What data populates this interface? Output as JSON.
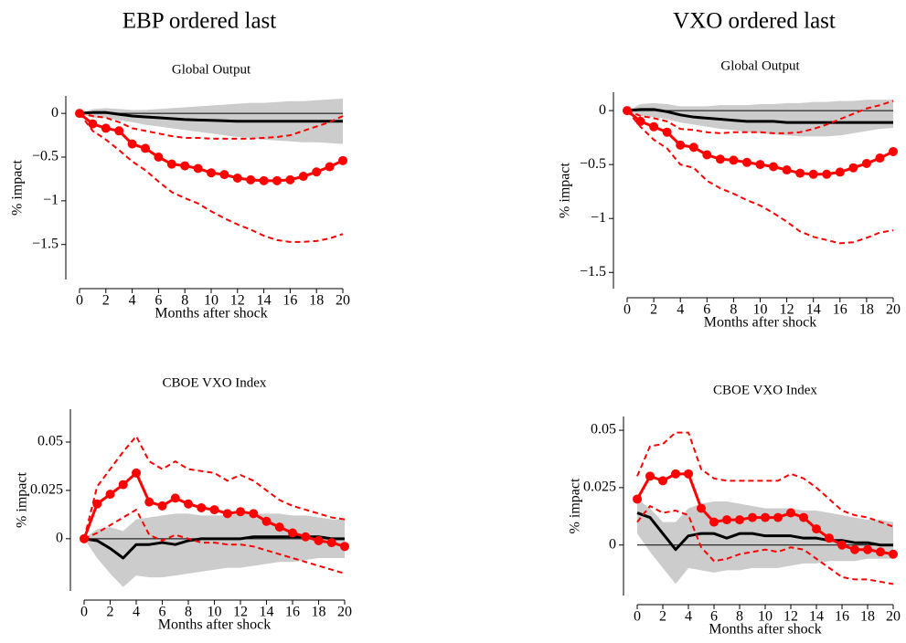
{
  "column_titles": [
    "EBP ordered last",
    "VXO ordered last"
  ],
  "chart_data": [
    {
      "type": "line",
      "title": "Global Output",
      "ylabel": "% impact",
      "xlabel": "Months after shock",
      "x": [
        0,
        1,
        2,
        3,
        4,
        5,
        6,
        7,
        8,
        9,
        10,
        11,
        12,
        13,
        14,
        15,
        16,
        17,
        18,
        19,
        20
      ],
      "xlim": [
        0,
        20
      ],
      "xticks": [
        0,
        2,
        4,
        6,
        8,
        10,
        12,
        14,
        16,
        18,
        20
      ],
      "ylim": [
        -1.9,
        0.2
      ],
      "yticks": [
        {
          "value": -1.5,
          "label": "−1.5"
        },
        {
          "value": -1,
          "label": "−1"
        },
        {
          "value": -0.5,
          "label": "−0.5"
        },
        0
      ],
      "hline": 0,
      "bands": [
        {
          "color": "#cccccc",
          "upper": [
            0,
            0.05,
            0.06,
            0.05,
            0.04,
            0.04,
            0.05,
            0.06,
            0.07,
            0.08,
            0.09,
            0.1,
            0.11,
            0.12,
            0.12,
            0.13,
            0.14,
            0.14,
            0.15,
            0.16,
            0.17
          ],
          "lower": [
            0,
            -0.05,
            -0.05,
            -0.08,
            -0.1,
            -0.13,
            -0.15,
            -0.17,
            -0.19,
            -0.21,
            -0.23,
            -0.25,
            -0.27,
            -0.28,
            -0.3,
            -0.31,
            -0.32,
            -0.33,
            -0.33,
            -0.34,
            -0.35
          ]
        }
      ],
      "series": [
        {
          "color": "#000000",
          "style": "solid",
          "width": 3,
          "values": [
            0,
            0.01,
            0.01,
            -0.01,
            -0.03,
            -0.04,
            -0.05,
            -0.06,
            -0.07,
            -0.075,
            -0.08,
            -0.085,
            -0.09,
            -0.09,
            -0.09,
            -0.09,
            -0.09,
            -0.09,
            -0.09,
            -0.09,
            -0.09
          ]
        },
        {
          "color": "#ff0000",
          "style": "dashed",
          "width": 2,
          "values": [
            0,
            -0.03,
            -0.05,
            -0.1,
            -0.17,
            -0.2,
            -0.23,
            -0.26,
            -0.28,
            -0.28,
            -0.29,
            -0.29,
            -0.29,
            -0.29,
            -0.28,
            -0.27,
            -0.25,
            -0.2,
            -0.15,
            -0.1,
            -0.03
          ]
        },
        {
          "color": "#ff0000",
          "style": "dashed",
          "width": 2,
          "values": [
            0,
            -0.2,
            -0.3,
            -0.42,
            -0.55,
            -0.65,
            -0.78,
            -0.9,
            -0.97,
            -1.03,
            -1.12,
            -1.2,
            -1.27,
            -1.33,
            -1.4,
            -1.45,
            -1.47,
            -1.47,
            -1.46,
            -1.43,
            -1.38
          ]
        },
        {
          "color": "#ff0000",
          "style": "solid",
          "width": 3,
          "markers": true,
          "values": [
            0,
            -0.12,
            -0.17,
            -0.2,
            -0.35,
            -0.4,
            -0.5,
            -0.58,
            -0.6,
            -0.63,
            -0.68,
            -0.7,
            -0.74,
            -0.76,
            -0.77,
            -0.77,
            -0.76,
            -0.72,
            -0.67,
            -0.61,
            -0.54
          ]
        }
      ]
    },
    {
      "type": "line",
      "title": "Global Output",
      "ylabel": "% impact",
      "xlabel": "Months after shock",
      "x": [
        0,
        1,
        2,
        3,
        4,
        5,
        6,
        7,
        8,
        9,
        10,
        11,
        12,
        13,
        14,
        15,
        16,
        17,
        18,
        19,
        20
      ],
      "xlim": [
        0,
        20
      ],
      "xticks": [
        0,
        2,
        4,
        6,
        8,
        10,
        12,
        14,
        16,
        18,
        20
      ],
      "ylim": [
        -1.65,
        0.17
      ],
      "yticks": [
        {
          "value": -1.5,
          "label": "−1.5"
        },
        {
          "value": -1,
          "label": "−1"
        },
        {
          "value": -0.5,
          "label": "−0.5"
        },
        0
      ],
      "hline": 0,
      "bands": [
        {
          "color": "#cccccc",
          "upper": [
            0,
            0.06,
            0.07,
            0.06,
            0.04,
            0.04,
            0.04,
            0.05,
            0.05,
            0.05,
            0.06,
            0.06,
            0.07,
            0.07,
            0.08,
            0.08,
            0.09,
            0.09,
            0.1,
            0.1,
            0.1
          ],
          "lower": [
            0,
            -0.05,
            -0.06,
            -0.08,
            -0.11,
            -0.13,
            -0.15,
            -0.17,
            -0.18,
            -0.2,
            -0.21,
            -0.22,
            -0.23,
            -0.24,
            -0.24,
            -0.24,
            -0.23,
            -0.21,
            -0.19,
            -0.17,
            -0.16
          ]
        }
      ],
      "series": [
        {
          "color": "#000000",
          "style": "solid",
          "width": 3,
          "values": [
            0,
            0.01,
            0.01,
            -0.01,
            -0.04,
            -0.06,
            -0.07,
            -0.08,
            -0.09,
            -0.1,
            -0.1,
            -0.1,
            -0.11,
            -0.11,
            -0.11,
            -0.11,
            -0.11,
            -0.11,
            -0.11,
            -0.11,
            -0.11
          ]
        },
        {
          "color": "#ff0000",
          "style": "dashed",
          "width": 2,
          "values": [
            0,
            -0.05,
            -0.07,
            -0.1,
            -0.17,
            -0.18,
            -0.2,
            -0.21,
            -0.2,
            -0.2,
            -0.2,
            -0.21,
            -0.21,
            -0.2,
            -0.17,
            -0.13,
            -0.08,
            -0.03,
            0.02,
            0.05,
            0.09
          ]
        },
        {
          "color": "#ff0000",
          "style": "dashed",
          "width": 2,
          "values": [
            0,
            -0.15,
            -0.27,
            -0.35,
            -0.5,
            -0.53,
            -0.65,
            -0.72,
            -0.77,
            -0.83,
            -0.88,
            -0.95,
            -1.03,
            -1.12,
            -1.17,
            -1.2,
            -1.23,
            -1.22,
            -1.18,
            -1.13,
            -1.11
          ]
        },
        {
          "color": "#ff0000",
          "style": "solid",
          "width": 3,
          "markers": true,
          "values": [
            0,
            -0.1,
            -0.15,
            -0.2,
            -0.32,
            -0.34,
            -0.41,
            -0.45,
            -0.46,
            -0.48,
            -0.5,
            -0.52,
            -0.55,
            -0.58,
            -0.59,
            -0.59,
            -0.57,
            -0.53,
            -0.49,
            -0.44,
            -0.38
          ]
        }
      ]
    },
    {
      "type": "line",
      "title": "CBOE VXO Index",
      "ylabel": "% impact",
      "xlabel": "Months after shock",
      "x": [
        0,
        1,
        2,
        3,
        4,
        5,
        6,
        7,
        8,
        9,
        10,
        11,
        12,
        13,
        14,
        15,
        16,
        17,
        18,
        19,
        20
      ],
      "xlim": [
        0,
        20
      ],
      "xticks": [
        0,
        2,
        4,
        6,
        8,
        10,
        12,
        14,
        16,
        18,
        20
      ],
      "ylim": [
        -0.027,
        0.067
      ],
      "yticks": [
        0,
        0.025,
        0.05
      ],
      "hline": 0,
      "bands": [
        {
          "color": "#cccccc",
          "upper": [
            0,
            0.005,
            0.006,
            0.004,
            0.01,
            0.011,
            0.012,
            0.013,
            0.013,
            0.012,
            0.012,
            0.012,
            0.013,
            0.013,
            0.013,
            0.013,
            0.012,
            0.012,
            0.011,
            0.01,
            0.01
          ],
          "lower": [
            0,
            -0.01,
            -0.018,
            -0.025,
            -0.019,
            -0.02,
            -0.02,
            -0.019,
            -0.018,
            -0.017,
            -0.016,
            -0.015,
            -0.015,
            -0.014,
            -0.013,
            -0.012,
            -0.012,
            -0.011,
            -0.01,
            -0.01,
            -0.01
          ]
        }
      ],
      "series": [
        {
          "color": "#000000",
          "style": "solid",
          "width": 3,
          "values": [
            0,
            -0.001,
            -0.005,
            -0.01,
            -0.003,
            -0.003,
            -0.002,
            -0.003,
            -0.001,
            0,
            0,
            0,
            0,
            0.001,
            0.001,
            0.001,
            0.001,
            0.001,
            0.001,
            0,
            0
          ]
        },
        {
          "color": "#ff0000",
          "style": "dashed",
          "width": 2,
          "values": [
            0,
            0.027,
            0.036,
            0.045,
            0.053,
            0.04,
            0.036,
            0.04,
            0.036,
            0.035,
            0.034,
            0.03,
            0.033,
            0.03,
            0.025,
            0.02,
            0.017,
            0.015,
            0.013,
            0.011,
            0.01
          ]
        },
        {
          "color": "#ff0000",
          "style": "dashed",
          "width": 2,
          "values": [
            0,
            0.003,
            0.007,
            0.011,
            0.015,
            0.002,
            -0.001,
            0.002,
            0,
            -0.002,
            -0.002,
            -0.003,
            -0.003,
            -0.004,
            -0.006,
            -0.008,
            -0.01,
            -0.012,
            -0.014,
            -0.016,
            -0.018
          ]
        },
        {
          "color": "#ff0000",
          "style": "solid",
          "width": 3,
          "markers": true,
          "values": [
            0,
            0.018,
            0.023,
            0.028,
            0.034,
            0.019,
            0.017,
            0.021,
            0.018,
            0.016,
            0.015,
            0.013,
            0.014,
            0.013,
            0.009,
            0.006,
            0.003,
            0.001,
            -0.001,
            -0.002,
            -0.004
          ]
        }
      ]
    },
    {
      "type": "line",
      "title": "CBOE VXO Index",
      "ylabel": "% impact",
      "xlabel": "Months after shock",
      "x": [
        0,
        1,
        2,
        3,
        4,
        5,
        6,
        7,
        8,
        9,
        10,
        11,
        12,
        13,
        14,
        15,
        16,
        17,
        18,
        19,
        20
      ],
      "xlim": [
        0,
        20
      ],
      "xticks": [
        0,
        2,
        4,
        6,
        8,
        10,
        12,
        14,
        16,
        18,
        20
      ],
      "ylim": [
        -0.022,
        0.056
      ],
      "yticks": [
        0,
        0.025,
        0.05
      ],
      "hline": 0,
      "bands": [
        {
          "color": "#cccccc",
          "upper": [
            0.02,
            0.016,
            0.01,
            0.01,
            0.016,
            0.018,
            0.019,
            0.019,
            0.018,
            0.017,
            0.016,
            0.016,
            0.016,
            0.015,
            0.015,
            0.014,
            0.013,
            0.012,
            0.011,
            0.011,
            0.01
          ],
          "lower": [
            0.005,
            -0.003,
            -0.01,
            -0.017,
            -0.01,
            -0.011,
            -0.012,
            -0.011,
            -0.011,
            -0.01,
            -0.01,
            -0.01,
            -0.009,
            -0.008,
            -0.008,
            -0.007,
            -0.007,
            -0.007,
            -0.006,
            -0.006,
            -0.006
          ]
        }
      ],
      "series": [
        {
          "color": "#000000",
          "style": "solid",
          "width": 3,
          "values": [
            0.014,
            0.012,
            0.005,
            -0.002,
            0.004,
            0.005,
            0.005,
            0.003,
            0.005,
            0.005,
            0.004,
            0.004,
            0.004,
            0.003,
            0.003,
            0.002,
            0.002,
            0.001,
            0.001,
            0,
            0
          ]
        },
        {
          "color": "#ff0000",
          "style": "dashed",
          "width": 2,
          "values": [
            0.03,
            0.043,
            0.044,
            0.049,
            0.049,
            0.033,
            0.029,
            0.028,
            0.028,
            0.028,
            0.028,
            0.028,
            0.031,
            0.029,
            0.025,
            0.02,
            0.015,
            0.013,
            0.012,
            0.01,
            0.008
          ]
        },
        {
          "color": "#ff0000",
          "style": "dashed",
          "width": 2,
          "values": [
            0.01,
            0.017,
            0.014,
            0.015,
            0.013,
            -0.001,
            -0.007,
            -0.006,
            -0.004,
            -0.003,
            -0.002,
            -0.003,
            -0.001,
            -0.002,
            -0.006,
            -0.01,
            -0.014,
            -0.015,
            -0.015,
            -0.016,
            -0.017
          ]
        },
        {
          "color": "#ff0000",
          "style": "solid",
          "width": 3,
          "markers": true,
          "values": [
            0.02,
            0.03,
            0.028,
            0.031,
            0.031,
            0.016,
            0.01,
            0.011,
            0.011,
            0.012,
            0.012,
            0.012,
            0.014,
            0.012,
            0.007,
            0.003,
            0,
            -0.002,
            -0.002,
            -0.003,
            -0.004
          ]
        }
      ]
    }
  ]
}
